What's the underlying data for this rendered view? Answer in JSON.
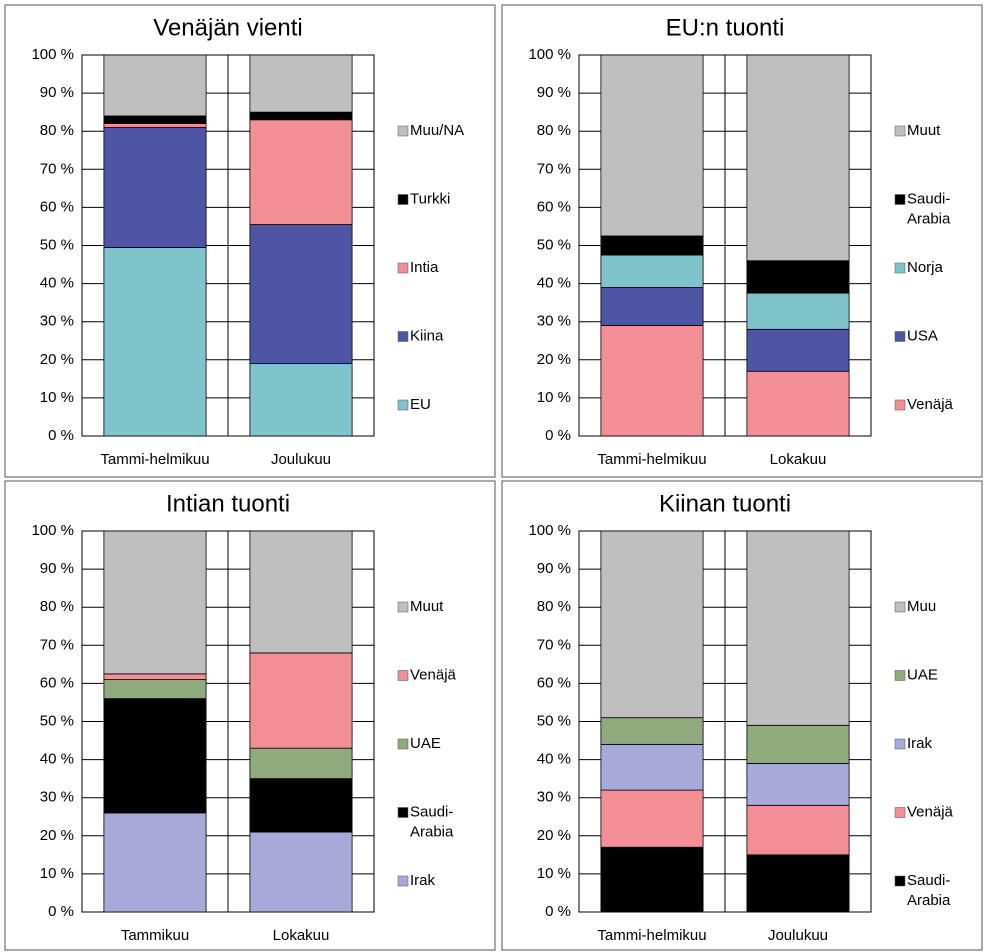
{
  "chart_data": [
    {
      "type": "bar",
      "stacked": true,
      "title": "Venäjän vienti",
      "categories": [
        "Tammi-helmikuu",
        "Joulukuu"
      ],
      "series": [
        {
          "name": "EU",
          "color": "#7fc4cb",
          "values": [
            49.5,
            19
          ]
        },
        {
          "name": "Kiina",
          "color": "#4f55a5",
          "values": [
            31.5,
            36.5
          ]
        },
        {
          "name": "Intia",
          "color": "#f28e96",
          "values": [
            1,
            27.5
          ]
        },
        {
          "name": "Turkki",
          "color": "#000000",
          "values": [
            2,
            2
          ]
        },
        {
          "name": "Muu/NA",
          "color": "#bfbfbf",
          "values": [
            16,
            15
          ]
        }
      ],
      "ylim": [
        0,
        100
      ],
      "yticks": [
        {
          "value": 0,
          "label": "0 %"
        },
        {
          "value": 10,
          "label": "10 %"
        },
        {
          "value": 20,
          "label": "20 %"
        },
        {
          "value": 30,
          "label": "30 %"
        },
        {
          "value": 40,
          "label": "40 %"
        },
        {
          "value": 50,
          "label": "50 %"
        },
        {
          "value": 60,
          "label": "60 %"
        },
        {
          "value": 70,
          "label": "70 %"
        },
        {
          "value": 80,
          "label": "80 %"
        },
        {
          "value": 90,
          "label": "90 %"
        },
        {
          "value": 100,
          "label": "100 %"
        }
      ],
      "grid": true
    },
    {
      "type": "bar",
      "stacked": true,
      "title": "EU:n tuonti",
      "categories": [
        "Tammi-helmikuu",
        "Lokakuu"
      ],
      "series": [
        {
          "name": "Venäjä",
          "color": "#f28e96",
          "values": [
            29,
            17
          ]
        },
        {
          "name": "USA",
          "color": "#4f55a5",
          "values": [
            10,
            11
          ]
        },
        {
          "name": "Norja",
          "color": "#7fc4cb",
          "values": [
            8.5,
            9.5
          ]
        },
        {
          "name": "Saudi-Arabia",
          "color": "#000000",
          "values": [
            5,
            8.5
          ]
        },
        {
          "name": "Muut",
          "color": "#bfbfbf",
          "values": [
            47.5,
            54
          ]
        }
      ],
      "ylim": [
        0,
        100
      ],
      "yticks": [
        {
          "value": 0,
          "label": "0 %"
        },
        {
          "value": 10,
          "label": "10 %"
        },
        {
          "value": 20,
          "label": "20 %"
        },
        {
          "value": 30,
          "label": "30 %"
        },
        {
          "value": 40,
          "label": "40 %"
        },
        {
          "value": 50,
          "label": "50 %"
        },
        {
          "value": 60,
          "label": "60 %"
        },
        {
          "value": 70,
          "label": "70 %"
        },
        {
          "value": 80,
          "label": "80 %"
        },
        {
          "value": 90,
          "label": "90 %"
        },
        {
          "value": 100,
          "label": "100 %"
        }
      ],
      "grid": true
    },
    {
      "type": "bar",
      "stacked": true,
      "title": "Intian tuonti",
      "categories": [
        "Tammikuu",
        "Lokakuu"
      ],
      "series": [
        {
          "name": "Irak",
          "color": "#a7a9d9",
          "values": [
            26,
            21
          ]
        },
        {
          "name": "Saudi-Arabia",
          "color": "#000000",
          "values": [
            30,
            14
          ]
        },
        {
          "name": "UAE",
          "color": "#8faa7c",
          "values": [
            5,
            8
          ]
        },
        {
          "name": "Venäjä",
          "color": "#f28e96",
          "values": [
            1.5,
            25
          ]
        },
        {
          "name": "Muut",
          "color": "#bfbfbf",
          "values": [
            37.5,
            32
          ]
        }
      ],
      "ylim": [
        0,
        100
      ],
      "yticks": [
        {
          "value": 0,
          "label": "0 %"
        },
        {
          "value": 10,
          "label": "10 %"
        },
        {
          "value": 20,
          "label": "20 %"
        },
        {
          "value": 30,
          "label": "30 %"
        },
        {
          "value": 40,
          "label": "40 %"
        },
        {
          "value": 50,
          "label": "50 %"
        },
        {
          "value": 60,
          "label": "60 %"
        },
        {
          "value": 70,
          "label": "70 %"
        },
        {
          "value": 80,
          "label": "80 %"
        },
        {
          "value": 90,
          "label": "90 %"
        },
        {
          "value": 100,
          "label": "100 %"
        }
      ],
      "grid": true
    },
    {
      "type": "bar",
      "stacked": true,
      "title": "Kiinan tuonti",
      "categories": [
        "Tammi-helmikuu",
        "Joulukuu"
      ],
      "series": [
        {
          "name": "Saudi-Arabia",
          "color": "#000000",
          "values": [
            17,
            15
          ]
        },
        {
          "name": "Venäjä",
          "color": "#f28e96",
          "values": [
            15,
            13
          ]
        },
        {
          "name": "Irak",
          "color": "#a7a9d9",
          "values": [
            12,
            11
          ]
        },
        {
          "name": "UAE",
          "color": "#8faa7c",
          "values": [
            7,
            10
          ]
        },
        {
          "name": "Muu",
          "color": "#bfbfbf",
          "values": [
            49,
            51
          ]
        }
      ],
      "ylim": [
        0,
        100
      ],
      "yticks": [
        {
          "value": 0,
          "label": "0 %"
        },
        {
          "value": 10,
          "label": "10 %"
        },
        {
          "value": 20,
          "label": "20 %"
        },
        {
          "value": 30,
          "label": "30 %"
        },
        {
          "value": 40,
          "label": "40 %"
        },
        {
          "value": 50,
          "label": "50 %"
        },
        {
          "value": 60,
          "label": "60 %"
        },
        {
          "value": 70,
          "label": "70 %"
        },
        {
          "value": 80,
          "label": "80 %"
        },
        {
          "value": 90,
          "label": "90 %"
        },
        {
          "value": 100,
          "label": "100 %"
        }
      ],
      "grid": true
    }
  ]
}
